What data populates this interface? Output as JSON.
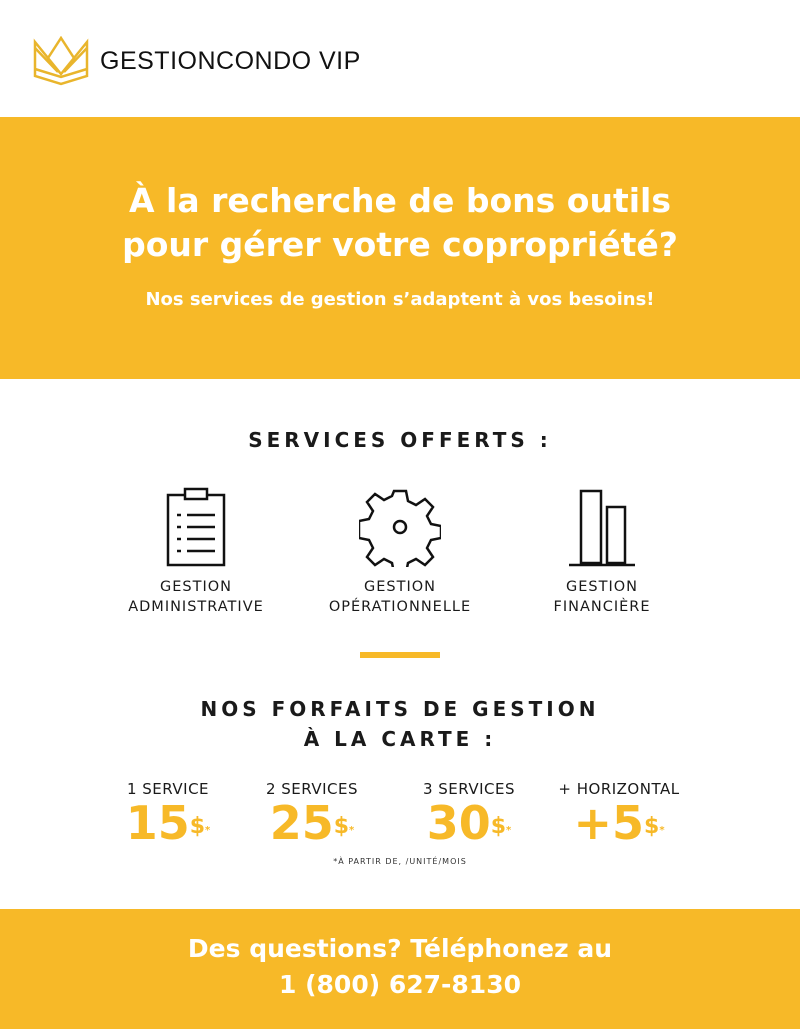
{
  "brand": {
    "name": "GESTIONCONDO VIP",
    "accent": "#f7b928"
  },
  "hero": {
    "title_line1": "À la recherche de bons outils",
    "title_line2": "pour gérer votre copropriété?",
    "subtitle": "Nos services de gestion s’adaptent à vos besoins!"
  },
  "services": {
    "title": "SERVICES OFFERTS :",
    "items": [
      {
        "icon": "clipboard-icon",
        "line1": "GESTION",
        "line2": "ADMINISTRATIVE"
      },
      {
        "icon": "gear-icon",
        "line1": "GESTION",
        "line2": "OPÉRATIONNELLE"
      },
      {
        "icon": "bar-chart-icon",
        "line1": "GESTION",
        "line2": "FINANCIÈRE"
      }
    ]
  },
  "plans": {
    "title_line1": "NOS FORFAITS DE GESTION",
    "title_line2": "À LA CARTE :",
    "items": [
      {
        "label": "1 SERVICE",
        "price": "15",
        "currency": "$",
        "mark": "*"
      },
      {
        "label": "2 SERVICES",
        "price": "25",
        "currency": "$",
        "mark": "*"
      },
      {
        "label": "3 SERVICES",
        "price": "30",
        "currency": "$",
        "mark": "*"
      },
      {
        "label": "+ HORIZONTAL",
        "price": "+5",
        "currency": "$",
        "mark": "*"
      }
    ],
    "note": "*À PARTIR DE, /UNITÉ/MOIS"
  },
  "footer": {
    "line1": "Des questions?  Téléphonez au",
    "line2": "1 (800) 627-8130"
  }
}
